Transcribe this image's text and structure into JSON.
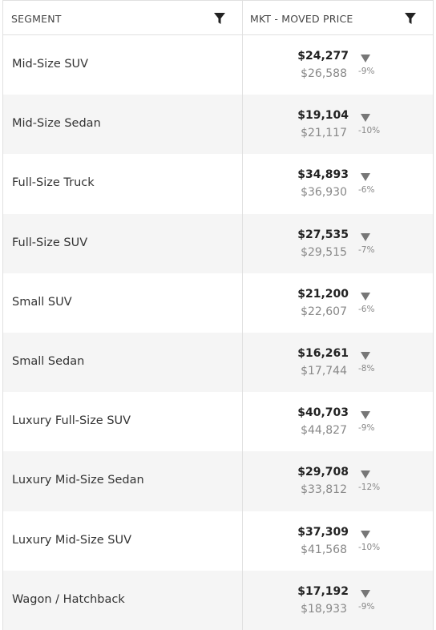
{
  "table": {
    "headers": [
      "SEGMENT",
      "MKT - MOVED PRICE"
    ],
    "rows": [
      {
        "segment": "Mid-Size SUV",
        "price": "$24,277",
        "previous": "$26,588",
        "change": "-9%"
      },
      {
        "segment": "Mid-Size Sedan",
        "price": "$19,104",
        "previous": "$21,117",
        "change": "-10%"
      },
      {
        "segment": "Full-Size Truck",
        "price": "$34,893",
        "previous": "$36,930",
        "change": "-6%"
      },
      {
        "segment": "Full-Size SUV",
        "price": "$27,535",
        "previous": "$29,515",
        "change": "-7%"
      },
      {
        "segment": "Small SUV",
        "price": "$21,200",
        "previous": "$22,607",
        "change": "-6%"
      },
      {
        "segment": "Small Sedan",
        "price": "$16,261",
        "previous": "$17,744",
        "change": "-8%"
      },
      {
        "segment": "Luxury Full-Size SUV",
        "price": "$40,703",
        "previous": "$44,827",
        "change": "-9%"
      },
      {
        "segment": "Luxury Mid-Size Sedan",
        "price": "$29,708",
        "previous": "$33,812",
        "change": "-12%"
      },
      {
        "segment": "Luxury Mid-Size SUV",
        "price": "$37,309",
        "previous": "$41,568",
        "change": "-10%"
      },
      {
        "segment": "Wagon / Hatchback",
        "price": "$17,192",
        "previous": "$18,933",
        "change": "-9%"
      }
    ]
  }
}
